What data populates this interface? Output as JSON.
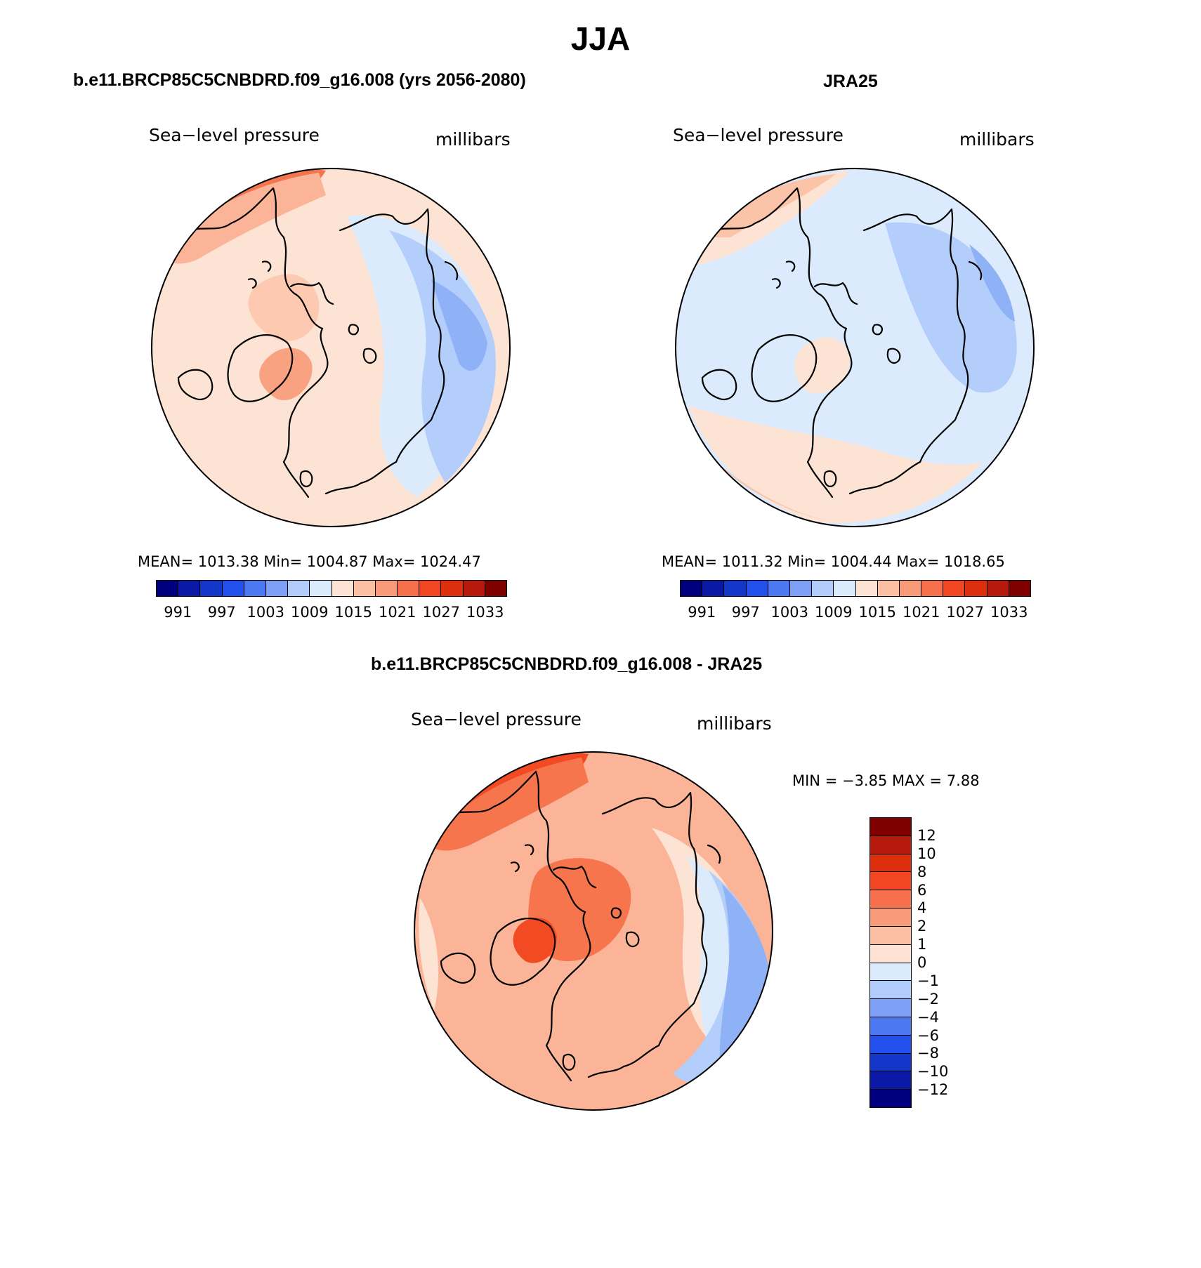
{
  "title": "JJA",
  "panels": [
    {
      "id": "model",
      "title": "b.e11.BRCP85C5CNBDRD.f09_g16.008 (yrs 2056-2080)",
      "left_label": "Sea−level pressure",
      "right_label": "millibars",
      "stats": "MEAN=  1013.38    Min=  1004.87    Max=  1024.47",
      "map_fill": "#fde3d3",
      "zones": [
        {
          "name": "pacific-high",
          "color": "#f4754d"
        },
        {
          "name": "north-pacific-ring",
          "color": "#fbb497"
        },
        {
          "name": "arctic-warm",
          "color": "#fdc9b1"
        },
        {
          "name": "greenland-high",
          "color": "#f9a281"
        },
        {
          "name": "eurasia-low",
          "color": "#dbebfb"
        },
        {
          "name": "asia-low",
          "color": "#b3cefb"
        },
        {
          "name": "asia-deep-low",
          "color": "#8fb2f7"
        },
        {
          "name": "atlantic-ring",
          "color": "#fbb497"
        }
      ],
      "colorbar": {
        "colors": [
          "#00007f",
          "#0a1aa6",
          "#1337c8",
          "#2350ec",
          "#4c78f2",
          "#7d9ff5",
          "#b1cbfa",
          "#dbeafc",
          "#fde3d3",
          "#fbbfa4",
          "#f99a79",
          "#f6704d",
          "#f24623",
          "#dd2e0e",
          "#b51a0c",
          "#800000"
        ],
        "labels": [
          "991",
          "997",
          "1003",
          "1009",
          "1015",
          "1021",
          "1027",
          "1033"
        ]
      }
    },
    {
      "id": "obs",
      "title": "JRA25",
      "left_label": "Sea−level pressure",
      "right_label": "millibars",
      "stats": "MEAN=  1011.32    Min=  1004.44    Max=  1018.65",
      "map_fill": "#dbeafc",
      "zones": [
        {
          "name": "pacific-ring",
          "color": "#fde3d3"
        },
        {
          "name": "pacific-warm",
          "color": "#fbc3a8"
        },
        {
          "name": "asia-low",
          "color": "#b3cefb"
        },
        {
          "name": "asia-deep-low",
          "color": "#8fb2f7"
        },
        {
          "name": "atlantic-ring",
          "color": "#fde3d3"
        },
        {
          "name": "atlantic-warm",
          "color": "#fbc3a8"
        },
        {
          "name": "greenland-warm",
          "color": "#fde3d3"
        }
      ],
      "colorbar": {
        "colors": [
          "#00007f",
          "#0a1aa6",
          "#1337c8",
          "#2350ec",
          "#4c78f2",
          "#7d9ff5",
          "#b1cbfa",
          "#dbeafc",
          "#fde3d3",
          "#fbbfa4",
          "#f99a79",
          "#f6704d",
          "#f24623",
          "#dd2e0e",
          "#b51a0c",
          "#800000"
        ],
        "labels": [
          "991",
          "997",
          "1003",
          "1009",
          "1015",
          "1021",
          "1027",
          "1033"
        ]
      }
    },
    {
      "id": "diff",
      "title": "b.e11.BRCP85C5CNBDRD.f09_g16.008 - JRA25",
      "left_label": "Sea−level pressure",
      "right_label": "millibars",
      "stats": "MIN =    −3.85  MAX =     7.88",
      "map_fill": "#fbb497",
      "zones": [
        {
          "name": "pacific-strong",
          "color": "#f24b23"
        },
        {
          "name": "pacific-mid",
          "color": "#f6754d"
        },
        {
          "name": "arctic-core",
          "color": "#f6754d"
        },
        {
          "name": "greenland-core",
          "color": "#f24b23"
        },
        {
          "name": "eurasia-near-zero",
          "color": "#fde3d3"
        },
        {
          "name": "asia-neg1",
          "color": "#dbebfb"
        },
        {
          "name": "asia-neg2",
          "color": "#b3cefb"
        },
        {
          "name": "asia-neg4",
          "color": "#8fb2f7"
        },
        {
          "name": "west-coast",
          "color": "#fde3d3"
        }
      ],
      "colorbar": {
        "colors": [
          "#800000",
          "#b51a0c",
          "#dd2e0e",
          "#f24623",
          "#f6704d",
          "#f99a79",
          "#fbbfa4",
          "#fde3d3",
          "#dbeafc",
          "#b1cbfa",
          "#7d9ff5",
          "#4c78f2",
          "#2350ec",
          "#1337c8",
          "#0a1aa6",
          "#00007f"
        ],
        "labels": [
          "12",
          "10",
          "8",
          "6",
          "4",
          "2",
          "1",
          "0",
          "−1",
          "−2",
          "−4",
          "−6",
          "−8",
          "−10",
          "−12"
        ]
      }
    }
  ]
}
